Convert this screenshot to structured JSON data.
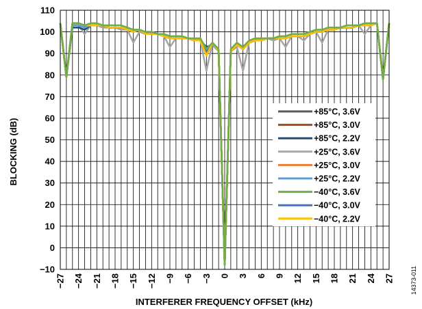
{
  "figure_id": "14373-011",
  "chart_data": {
    "type": "line",
    "title": "",
    "xlabel": "INTERFERER FREQUENCY OFFSET (kHz)",
    "ylabel": "BLOCKING (dB)",
    "xlim": [
      -27,
      27
    ],
    "ylim": [
      -10,
      110
    ],
    "xticks": [
      -27,
      -24,
      -21,
      -18,
      -15,
      -12,
      -9,
      -6,
      -3,
      0,
      3,
      6,
      9,
      12,
      15,
      18,
      21,
      24,
      27
    ],
    "xtick_labels": [
      "−27",
      "−24",
      "−21",
      "−18",
      "−15",
      "−12",
      "−9",
      "−6",
      "−3",
      "0",
      "3",
      "6",
      "9",
      "12",
      "15",
      "18",
      "21",
      "24",
      "27"
    ],
    "yticks": [
      -10,
      0,
      10,
      20,
      30,
      40,
      50,
      60,
      70,
      80,
      90,
      100,
      110
    ],
    "ytick_labels": [
      "−10",
      "0",
      "10",
      "20",
      "30",
      "40",
      "50",
      "60",
      "70",
      "80",
      "90",
      "100",
      "110"
    ],
    "grid": true,
    "legend_position": "right",
    "x": [
      -27,
      -26,
      -25,
      -24,
      -23,
      -22,
      -21,
      -20,
      -19,
      -18,
      -17,
      -16,
      -15,
      -14,
      -13,
      -12,
      -11,
      -10,
      -9,
      -8,
      -7,
      -6,
      -5,
      -4,
      -3,
      -2,
      -1,
      0,
      1,
      2,
      3,
      4,
      5,
      6,
      7,
      8,
      9,
      10,
      11,
      12,
      13,
      14,
      15,
      16,
      17,
      18,
      19,
      20,
      21,
      22,
      23,
      24,
      25,
      26,
      27
    ],
    "series": [
      {
        "name": "+85°C, 3.6V",
        "color": "#5a5a5a",
        "values": [
          104,
          79,
          104,
          104,
          103,
          103,
          103,
          103,
          102,
          102,
          102,
          101,
          100,
          101,
          99,
          99,
          99,
          98,
          97,
          97,
          97,
          97,
          96,
          96,
          91,
          95,
          91,
          -8,
          91,
          94,
          92,
          95,
          96,
          96,
          97,
          97,
          97,
          97,
          98,
          98,
          98,
          99,
          100,
          100,
          101,
          101,
          102,
          102,
          102,
          103,
          103,
          103,
          104,
          78,
          104
        ]
      },
      {
        "name": "+85°C, 3.0V",
        "color": "#9e4a1c",
        "values": [
          104,
          79,
          104,
          104,
          103,
          103,
          103,
          103,
          102,
          102,
          102,
          101,
          100,
          101,
          99,
          99,
          99,
          98,
          97,
          97,
          97,
          97,
          96,
          96,
          91,
          95,
          91,
          -8,
          91,
          94,
          92,
          95,
          96,
          96,
          97,
          97,
          97,
          97,
          98,
          98,
          98,
          99,
          100,
          100,
          101,
          101,
          102,
          102,
          102,
          103,
          103,
          103,
          104,
          78,
          104
        ]
      },
      {
        "name": "+85°C, 2.2V",
        "color": "#1f4e79",
        "values": [
          104,
          79,
          102,
          102,
          101,
          103,
          103,
          103,
          102,
          102,
          102,
          101,
          100,
          101,
          99,
          100,
          99,
          98,
          97,
          97,
          97,
          97,
          96,
          96,
          93,
          94,
          91,
          -8,
          91,
          94,
          93,
          95,
          96,
          96,
          97,
          97,
          97,
          97,
          98,
          98,
          98,
          99,
          100,
          100,
          101,
          101,
          102,
          102,
          102,
          103,
          103,
          103,
          104,
          78,
          104
        ]
      },
      {
        "name": "+25°C, 3.6V",
        "color": "#a6a6a6",
        "values": [
          104,
          79,
          103,
          103,
          99,
          103,
          103,
          102,
          102,
          102,
          101,
          101,
          95,
          100,
          99,
          99,
          99,
          98,
          93,
          97,
          97,
          97,
          96,
          96,
          82,
          95,
          91,
          -8,
          91,
          93,
          82,
          95,
          96,
          96,
          97,
          96,
          97,
          93,
          98,
          98,
          96,
          99,
          100,
          95,
          101,
          101,
          102,
          102,
          102,
          103,
          99,
          103,
          104,
          78,
          104
        ]
      },
      {
        "name": "+25°C, 3.0V",
        "color": "#ed7d31",
        "values": [
          104,
          79,
          104,
          104,
          103,
          103,
          103,
          103,
          102,
          102,
          102,
          101,
          100,
          101,
          99,
          99,
          99,
          98,
          97,
          97,
          97,
          97,
          96,
          96,
          90,
          95,
          91,
          -8,
          91,
          94,
          92,
          95,
          96,
          96,
          97,
          97,
          97,
          97,
          98,
          98,
          98,
          99,
          100,
          100,
          101,
          101,
          102,
          102,
          102,
          103,
          103,
          103,
          104,
          78,
          104
        ]
      },
      {
        "name": "+25°C, 2.2V",
        "color": "#5b9bd5",
        "values": [
          104,
          79,
          103,
          103,
          102,
          103,
          103,
          103,
          102,
          102,
          102,
          101,
          100,
          101,
          99,
          100,
          99,
          98,
          97,
          97,
          97,
          97,
          96,
          96,
          92,
          94,
          91,
          -8,
          91,
          94,
          92,
          95,
          96,
          96,
          97,
          97,
          97,
          97,
          98,
          98,
          98,
          99,
          100,
          100,
          101,
          101,
          102,
          102,
          102,
          103,
          103,
          103,
          104,
          78,
          104
        ]
      },
      {
        "name": "−40°C, 3.6V",
        "color": "#70ad47",
        "values": [
          104,
          79,
          104,
          104,
          103,
          104,
          104,
          103,
          103,
          103,
          103,
          102,
          101,
          101,
          100,
          100,
          99,
          99,
          98,
          98,
          98,
          97,
          97,
          97,
          92,
          95,
          92,
          -8,
          92,
          95,
          93,
          96,
          97,
          97,
          97,
          97,
          98,
          98,
          99,
          99,
          99,
          100,
          101,
          101,
          102,
          102,
          102,
          103,
          103,
          103,
          104,
          104,
          104,
          78,
          104
        ]
      },
      {
        "name": "−40°C, 3.0V",
        "color": "#4472c4",
        "values": [
          104,
          79,
          104,
          104,
          103,
          103,
          103,
          103,
          102,
          102,
          102,
          101,
          100,
          101,
          99,
          99,
          99,
          98,
          97,
          97,
          97,
          97,
          96,
          96,
          91,
          95,
          91,
          -8,
          91,
          94,
          92,
          95,
          96,
          96,
          97,
          97,
          97,
          97,
          98,
          98,
          98,
          99,
          100,
          100,
          101,
          101,
          102,
          102,
          102,
          103,
          103,
          103,
          104,
          78,
          104
        ]
      },
      {
        "name": "−40°C, 2.2V",
        "color": "#ffc000",
        "values": [
          104,
          79,
          104,
          104,
          103,
          103,
          103,
          103,
          102,
          102,
          102,
          101,
          100,
          101,
          99,
          99,
          99,
          98,
          97,
          97,
          97,
          97,
          96,
          96,
          89,
          95,
          91,
          -8,
          91,
          94,
          92,
          95,
          96,
          96,
          97,
          97,
          97,
          97,
          98,
          98,
          98,
          99,
          100,
          100,
          101,
          101,
          102,
          102,
          102,
          103,
          103,
          103,
          104,
          78,
          104
        ]
      }
    ]
  }
}
